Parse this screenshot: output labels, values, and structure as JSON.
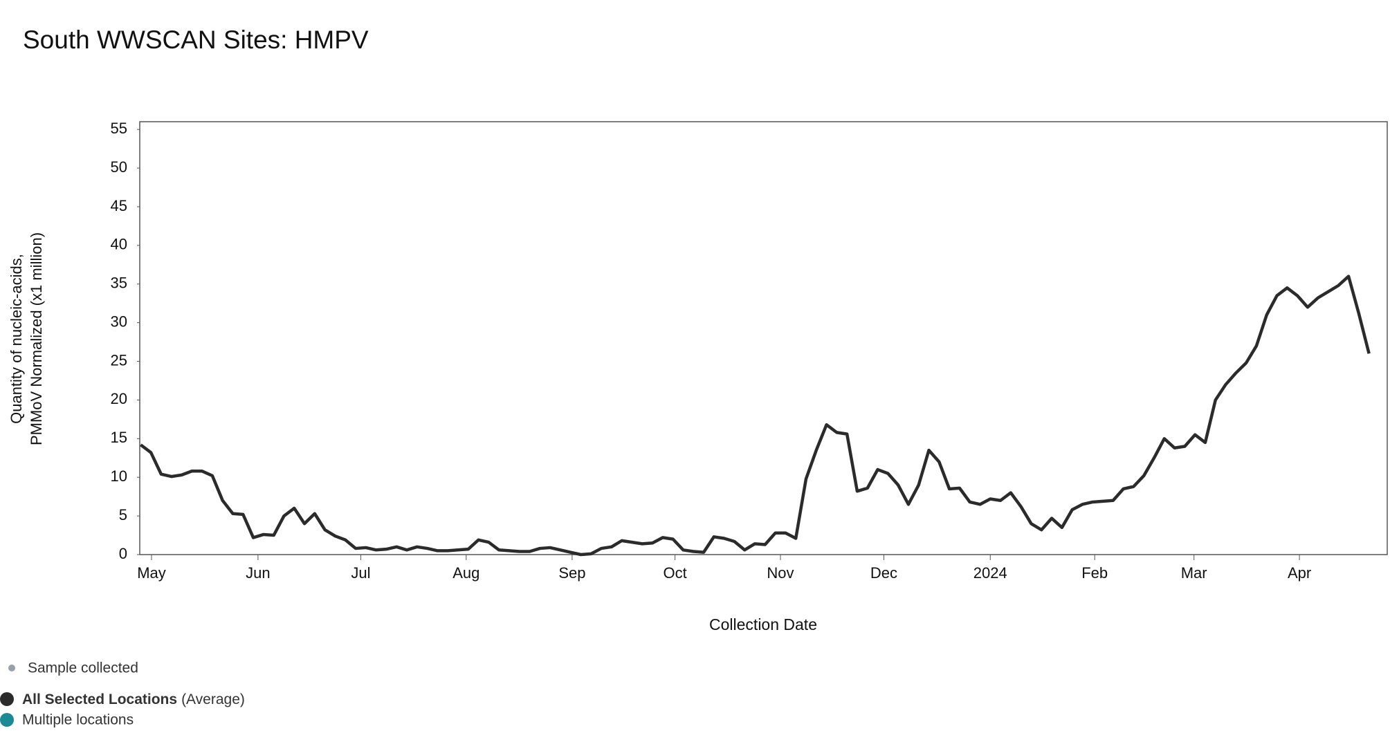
{
  "chart_data": {
    "type": "line",
    "title": "South WWSCAN Sites: HMPV",
    "ylabel": [
      "Quantity of nucleic-acids,",
      "PMMoV Normalized (x1 million)"
    ],
    "xlabel": "Collection Date",
    "ylim": [
      0,
      56
    ],
    "yticks": [
      0,
      5,
      10,
      15,
      20,
      25,
      30,
      35,
      40,
      45,
      50,
      55
    ],
    "xlim": [
      -0.09,
      121.78
    ],
    "xticks": [
      {
        "value": 1.06,
        "label": "May"
      },
      {
        "value": 11.46,
        "label": "Jun"
      },
      {
        "value": 21.5,
        "label": "Jul"
      },
      {
        "value": 31.8,
        "label": "Aug"
      },
      {
        "value": 42.15,
        "label": "Sep"
      },
      {
        "value": 52.2,
        "label": "Oct"
      },
      {
        "value": 62.5,
        "label": "Nov"
      },
      {
        "value": 72.6,
        "label": "Dec"
      },
      {
        "value": 83.0,
        "label": "2024"
      },
      {
        "value": 93.2,
        "label": "Feb"
      },
      {
        "value": 102.9,
        "label": "Mar"
      },
      {
        "value": 113.2,
        "label": "Apr"
      }
    ],
    "grid": false,
    "series": [
      {
        "name": "All Selected Locations",
        "color": "#2b2b2b",
        "values": [
          14.2,
          13.2,
          10.4,
          10.1,
          10.3,
          10.8,
          10.8,
          10.2,
          7,
          5.3,
          5.2,
          2.2,
          2.6,
          2.5,
          5,
          6,
          4,
          5.3,
          3.2,
          2.4,
          1.9,
          0.8,
          0.9,
          0.6,
          0.7,
          1.0,
          0.6,
          1.0,
          0.8,
          0.5,
          0.5,
          0.6,
          0.7,
          1.9,
          1.6,
          0.6,
          0.5,
          0.4,
          0.4,
          0.8,
          0.9,
          0.6,
          0.3,
          0.0,
          0.1,
          0.8,
          1.0,
          1.8,
          1.6,
          1.4,
          1.5,
          2.2,
          2.0,
          0.6,
          0.4,
          0.3,
          2.3,
          2.1,
          1.7,
          0.6,
          1.4,
          1.3,
          2.8,
          2.8,
          2.1,
          9.8,
          13.5,
          16.8,
          15.8,
          15.6,
          8.2,
          8.6,
          11,
          10.5,
          9,
          6.5,
          9,
          13.5,
          12,
          8.5,
          8.6,
          6.8,
          6.5,
          7.2,
          7,
          8,
          6.2,
          4,
          3.2,
          4.7,
          3.5,
          5.8,
          6.5,
          6.8,
          6.9,
          7,
          8.5,
          8.8,
          10.2,
          12.5,
          15,
          13.8,
          14,
          15.5,
          14.5,
          20,
          22,
          23.5,
          24.8,
          27,
          31,
          33.5,
          34.5,
          33.5,
          32,
          33.2,
          34,
          34.8,
          36,
          31.2,
          26
        ]
      }
    ],
    "legend": {
      "sample": {
        "label": "Sample collected",
        "color": "#9aa0a8"
      },
      "series_note": "(Average)",
      "other": {
        "label": "Multiple locations",
        "color": "#1a8a94"
      }
    }
  }
}
